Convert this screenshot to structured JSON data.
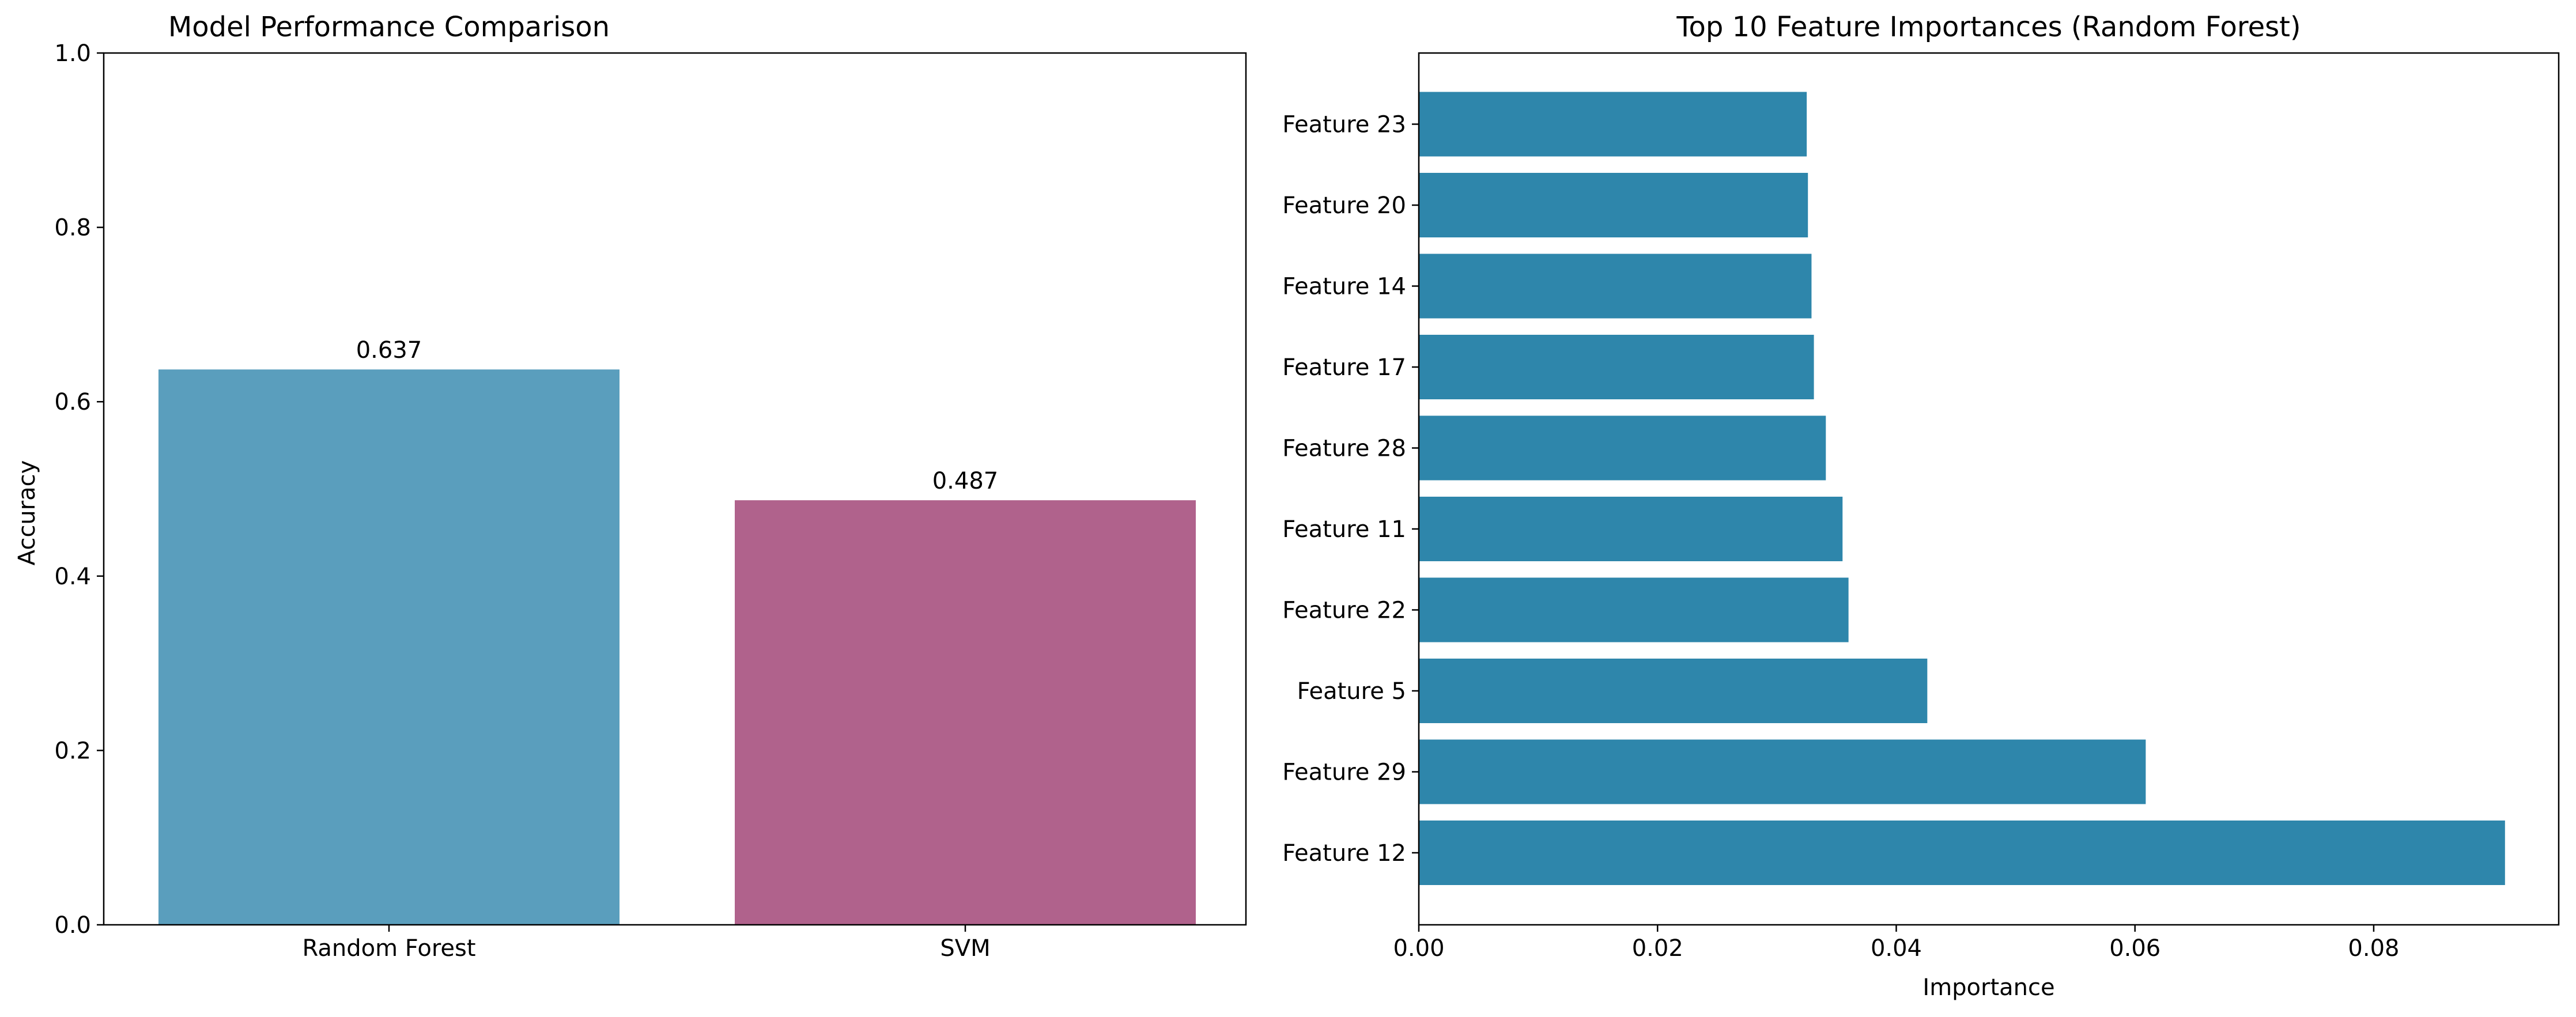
{
  "chart_data": [
    {
      "type": "bar",
      "title": "Model Performance Comparison",
      "xlabel": "",
      "ylabel": "Accuracy",
      "categories": [
        "Random Forest",
        "SVM"
      ],
      "values": [
        0.637,
        0.487
      ],
      "value_labels": [
        "0.637",
        "0.487"
      ],
      "colors": [
        "#5a9ebd",
        "#b0628c"
      ],
      "ylim": [
        0,
        1.0
      ],
      "yticks": [
        0.0,
        0.2,
        0.4,
        0.6,
        0.8,
        1.0
      ],
      "ytick_labels": [
        "0.0",
        "0.2",
        "0.4",
        "0.6",
        "0.8",
        "1.0"
      ],
      "grid": false,
      "legend": "none"
    },
    {
      "type": "bar",
      "orientation": "horizontal",
      "title": "Top 10 Feature Importances (Random Forest)",
      "xlabel": "Importance",
      "ylabel": "",
      "categories": [
        "Feature 12",
        "Feature 29",
        "Feature 5",
        "Feature 22",
        "Feature 11",
        "Feature 28",
        "Feature 17",
        "Feature 14",
        "Feature 20",
        "Feature 23"
      ],
      "values": [
        0.091,
        0.0609,
        0.0426,
        0.036,
        0.0355,
        0.0341,
        0.0331,
        0.0329,
        0.0326,
        0.0325
      ],
      "colors": [
        "#2e86ab"
      ],
      "xlim": [
        0,
        0.0955
      ],
      "xticks": [
        0.0,
        0.02,
        0.04,
        0.06,
        0.08
      ],
      "xtick_labels": [
        "0.00",
        "0.02",
        "0.04",
        "0.06",
        "0.08"
      ],
      "grid": false,
      "legend": "none"
    }
  ]
}
